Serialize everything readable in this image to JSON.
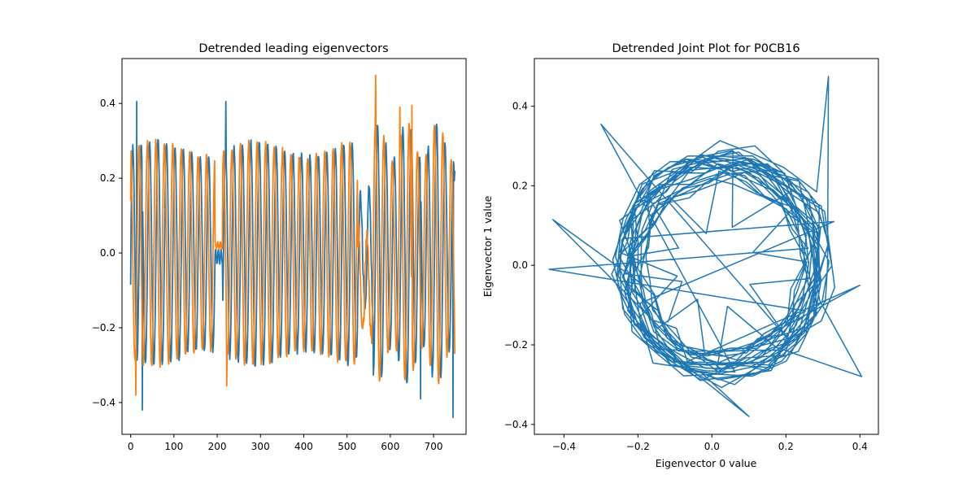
{
  "chart_data": [
    {
      "type": "line",
      "title": "Detrended leading eigenvectors",
      "xlabel": "",
      "ylabel": "",
      "xlim": [
        -20,
        775
      ],
      "ylim": [
        -0.485,
        0.52
      ],
      "xticks": [
        0,
        100,
        200,
        300,
        400,
        500,
        600,
        700
      ],
      "yticks": [
        -0.4,
        -0.2,
        0.0,
        0.2,
        0.4
      ],
      "xtick_labels": [
        "0",
        "100",
        "200",
        "300",
        "400",
        "500",
        "600",
        "700"
      ],
      "ytick_labels": [
        "−0.4",
        "−0.2",
        "0.0",
        "0.2",
        "0.4"
      ],
      "grid": false,
      "n_points": 750,
      "colors": [
        "#1f77b4",
        "#ff7f0e"
      ],
      "series": [
        {
          "color": "#1f77b4",
          "period": 19.5,
          "phase": 0.0,
          "amplitude": 0.28,
          "offset": 0.0,
          "start_value": -0.085,
          "first_peak": [
            14,
            0.405
          ],
          "notable_extremes": [
            [
              27,
              -0.42
            ],
            [
              220,
              0.405
            ],
            [
              670,
              -0.39
            ],
            [
              745,
              -0.44
            ]
          ],
          "flat_segment": [
            195,
            212
          ],
          "end_value": 0.22
        },
        {
          "color": "#ff7f0e",
          "period": 19.5,
          "phase": 1.57,
          "amplitude": 0.28,
          "offset": 0.0,
          "start_value": 0.14,
          "notable_extremes": [
            [
              12,
              -0.38
            ],
            [
              222,
              -0.355
            ],
            [
              566,
              0.475
            ],
            [
              622,
              0.39
            ],
            [
              650,
              0.395
            ],
            [
              749,
              -0.325
            ]
          ],
          "flat_segment": [
            195,
            212
          ],
          "end_value": -0.27
        }
      ]
    },
    {
      "type": "line",
      "title": "Detrended Joint Plot for P0CB16",
      "xlabel": "Eigenvector 0 value",
      "ylabel": "Eigenvector 1 value",
      "xlim": [
        -0.48,
        0.45
      ],
      "ylim": [
        -0.425,
        0.52
      ],
      "xticks": [
        -0.4,
        -0.2,
        0.0,
        0.2,
        0.4
      ],
      "yticks": [
        -0.4,
        -0.2,
        0.0,
        0.2,
        0.4
      ],
      "xtick_labels": [
        "−0.4",
        "−0.2",
        "0.0",
        "0.2",
        "0.4"
      ],
      "ytick_labels": [
        "−0.4",
        "−0.2",
        "0.0",
        "0.2",
        "0.4"
      ],
      "grid": false,
      "colors": [
        "#1f77b4"
      ],
      "orbit_center": [
        0.03,
        0.0
      ],
      "orbit_radius": 0.28,
      "outliers": [
        [
          0.315,
          0.475
        ],
        [
          -0.44,
          -0.01
        ],
        [
          0.405,
          -0.28
        ],
        [
          -0.3,
          0.355
        ],
        [
          0.4,
          -0.05
        ],
        [
          0.1,
          -0.38
        ],
        [
          -0.43,
          0.115
        ],
        [
          0.33,
          0.11
        ]
      ]
    }
  ]
}
